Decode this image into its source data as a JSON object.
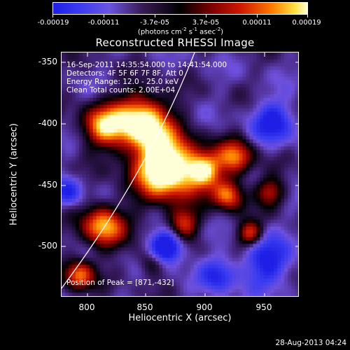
{
  "colorbar": {
    "ticks": [
      "-0.00019",
      "-0.00011",
      "-3.7e-05",
      "3.7e-05",
      "0.00011",
      "0.00019"
    ],
    "unit_prefix": "(photons cm",
    "unit_exp1": "-2",
    "unit_mid": " s",
    "unit_exp2": "-1",
    "unit_mid2": " asec",
    "unit_exp3": "-2",
    "unit_suffix": ")"
  },
  "chart_data": {
    "type": "heatmap",
    "title": "Reconstructed RHESSI Image",
    "xlabel": "Heliocentric X (arcsec)",
    "ylabel": "Heliocentric Y (arcsec)",
    "xlim": [
      777,
      970
    ],
    "ylim": [
      -535,
      -335
    ],
    "x_ticks": [
      "800",
      "850",
      "900",
      "950"
    ],
    "y_ticks": [
      "-350",
      "-400",
      "-450",
      "-500"
    ],
    "color_range": [
      -0.00019,
      0.00019
    ],
    "annotations": {
      "time_range": "16-Sep-2011 14:35:54.000 to 14:41:54.000",
      "detectors": "Detectors: 4F 5F 6F 7F 8F, Att 0",
      "energy_range": "Energy Range: 12.0 - 25.0 keV",
      "method": "Clean     Total counts: 2.00E+04",
      "peak": "Position of Peak = [871,-432]"
    },
    "peak_position": [
      871,
      -432
    ]
  },
  "footer": {
    "date": "28-Aug-2013 04:24"
  }
}
